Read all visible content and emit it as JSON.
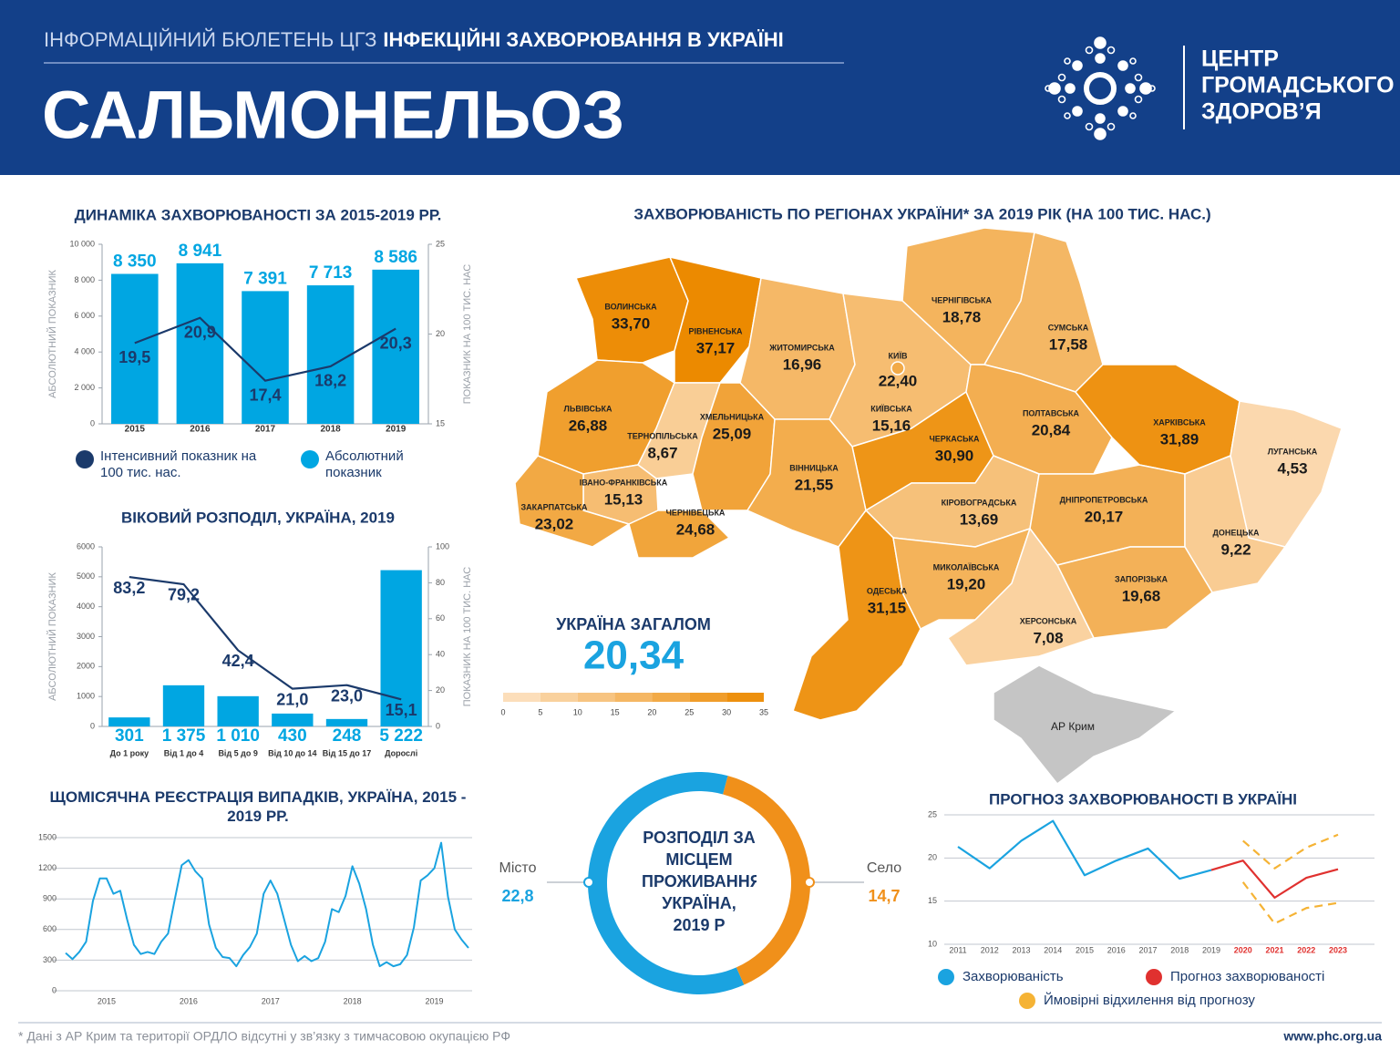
{
  "header": {
    "series_label": "ІНФОРМАЦІЙНИЙ БЮЛЕТЕНЬ ЦГЗ",
    "series_title": "ІНФЕКЦІЙНІ ЗАХВОРЮВАННЯ В УКРАЇНІ",
    "title": "САЛЬМОНЕЛЬОЗ",
    "org": [
      "ЦЕНТР",
      "ГРОМАДСЬКОГО",
      "ЗДОРОВ’Я"
    ]
  },
  "chart_data": [
    {
      "type": "bar-line",
      "title": "ДИНАМІКА ЗАХВОРЮВАНОСТІ ЗА 2015-2019 РР.",
      "categories": [
        "2015",
        "2016",
        "2017",
        "2018",
        "2019"
      ],
      "series": [
        {
          "name": "Інтенсивний показник на 100 тис. нас.",
          "color": "#1b3a6b",
          "axis": "y2",
          "values": [
            19.5,
            20.9,
            17.4,
            18.2,
            20.3
          ],
          "value_labels": [
            "19,5",
            "20,9",
            "17,4",
            "18,2",
            "20,3"
          ]
        },
        {
          "name": "Абсолютний показник",
          "color": "#00a6e2",
          "values": [
            8350,
            8941,
            7391,
            7713,
            8586
          ],
          "value_labels": [
            "8 350",
            "8 941",
            "7 391",
            "7 713",
            "8 586"
          ]
        }
      ],
      "ylabel": "АБСОЛЮТНИЙ ПОКАЗНИК",
      "y2label": "ПОКАЗНИК НА 100 ТИС. НАС",
      "ylim": [
        0,
        10000
      ],
      "yticks": [
        0,
        {
          "value": 2000,
          "label": "2 000"
        },
        {
          "value": 4000,
          "label": "4 000"
        },
        {
          "value": 6000,
          "label": "6 000"
        },
        {
          "value": 8000,
          "label": "8 000"
        },
        {
          "value": 10000,
          "label": "10 000"
        }
      ],
      "y2lim": [
        15,
        25
      ],
      "y2ticks": [
        15,
        20,
        25
      ],
      "legend": true
    },
    {
      "type": "bar-line",
      "title": "ВІКОВИЙ РОЗПОДІЛ, УКРАЇНА, 2019",
      "categories": [
        "До 1 року",
        "Від 1 до 4",
        "Від 5 до 9",
        "Від 10 до 14",
        "Від 15 до 17",
        "Дорослі"
      ],
      "series": [
        {
          "color": "#1b3a6b",
          "axis": "y2",
          "values": [
            83.2,
            79.2,
            42.4,
            21.0,
            23.0,
            15.1
          ],
          "value_labels": [
            "83,2",
            "79,2",
            "42,4",
            "21,0",
            "23,0",
            "15,1"
          ]
        },
        {
          "color": "#00a6e2",
          "values": [
            301,
            1375,
            1010,
            430,
            248,
            5222
          ],
          "value_labels": [
            "301",
            "1 375",
            "1 010",
            "430",
            "248",
            "5 222"
          ]
        }
      ],
      "ylabel": "АБСОЛЮТНИЙ ПОКАЗНИК",
      "y2label": "ПОКАЗНИК НА 100 ТИС. НАС",
      "ylim": [
        0,
        6000
      ],
      "yticks": [
        0,
        1000,
        2000,
        3000,
        4000,
        5000,
        6000
      ],
      "y2lim": [
        0,
        100
      ],
      "y2ticks": [
        0,
        20,
        40,
        60,
        80,
        100
      ]
    },
    {
      "type": "line",
      "title": "ЩОМІСЯЧНА РЕЄСТРАЦІЯ ВИПАДКІВ, УКРАЇНА, 2015 - 2019 РР.",
      "categories": [
        null,
        null,
        null,
        null,
        null,
        null,
        "2015",
        null,
        null,
        null,
        null,
        null,
        null,
        null,
        null,
        null,
        null,
        null,
        "2016",
        null,
        null,
        null,
        null,
        null,
        null,
        null,
        null,
        null,
        null,
        null,
        "2017",
        null,
        null,
        null,
        null,
        null,
        null,
        null,
        null,
        null,
        null,
        null,
        "2018",
        null,
        null,
        null,
        null,
        null,
        null,
        null,
        null,
        null,
        null,
        null,
        "2019",
        null,
        null,
        null,
        null,
        null
      ],
      "values": [
        370,
        310,
        380,
        480,
        880,
        1100,
        1100,
        950,
        980,
        700,
        450,
        360,
        380,
        360,
        480,
        560,
        900,
        1230,
        1280,
        1170,
        1100,
        650,
        420,
        330,
        320,
        240,
        350,
        430,
        560,
        950,
        1080,
        950,
        700,
        450,
        290,
        340,
        290,
        320,
        480,
        800,
        770,
        930,
        1220,
        1050,
        800,
        450,
        240,
        280,
        240,
        260,
        350,
        620,
        1080,
        1130,
        1200,
        1450,
        920,
        600,
        500,
        420
      ],
      "color": "#1aa3e0",
      "ylim": [
        0,
        1500
      ],
      "yticks": [
        0,
        300,
        600,
        900,
        1200,
        1500
      ],
      "grid": true
    },
    {
      "type": "donut",
      "title": "РОЗПОДІЛ ЗА МІСЦЕМ ПРОЖИВАННЯ, УКРАЇНА, 2019 Р",
      "categories": [
        "Місто",
        "Село"
      ],
      "values": [
        22.8,
        14.7
      ],
      "value_labels": [
        "22,8",
        "14,7"
      ],
      "colors": [
        "#1aa3e0",
        "#f0901a"
      ]
    },
    {
      "type": "line",
      "title": "ПРОГНОЗ ЗАХВОРЮВАНОСТІ В УКРАЇНІ",
      "categories": [
        "2011",
        "2012",
        "2013",
        "2014",
        "2015",
        "2016",
        "2017",
        "2018",
        "2019",
        "2020",
        "2021",
        "2022",
        "2023"
      ],
      "series": [
        {
          "name": "Захворюваність",
          "color": "#1aa3e0",
          "values": [
            21.3,
            18.8,
            22.0,
            24.3,
            18.0,
            19.7,
            21.1,
            17.6,
            18.6,
            null,
            null,
            null,
            null
          ]
        },
        {
          "name": "Прогноз захворюваності",
          "color": "#e0312f",
          "values": [
            null,
            null,
            null,
            null,
            null,
            null,
            null,
            null,
            18.6,
            19.7,
            15.4,
            17.7,
            18.7
          ]
        },
        {
          "name": "Ймовірні відхилення від прогнозу",
          "color": "#f5b335",
          "dashed": true,
          "values": [
            null,
            null,
            null,
            null,
            null,
            null,
            null,
            null,
            null,
            22.0,
            18.8,
            21.2,
            22.7
          ],
          "values_low": [
            null,
            null,
            null,
            null,
            null,
            null,
            null,
            null,
            null,
            17.2,
            12.4,
            14.2,
            14.8
          ]
        }
      ],
      "ylim": [
        10,
        25
      ],
      "yticks": [
        10,
        15,
        20,
        25
      ],
      "grid": true,
      "legend": true
    },
    {
      "type": "map",
      "title": "ЗАХВОРЮВАНІСТЬ ПО РЕГІОНАХ УКРАЇНИ* ЗА 2019 РІК (НА 100 ТИС. НАС.)",
      "regions": [
        {
          "name": "ВОЛИНСЬКА",
          "value": 33.7,
          "value_label": "33,70"
        },
        {
          "name": "РІВНЕНСЬКА",
          "value": 37.17,
          "value_label": "37,17"
        },
        {
          "name": "ЖИТОМИРСЬКА",
          "value": 16.96,
          "value_label": "16,96"
        },
        {
          "name": "ЧЕРНІГІВСЬКА",
          "value": 18.78,
          "value_label": "18,78"
        },
        {
          "name": "СУМСЬКА",
          "value": 17.58,
          "value_label": "17,58"
        },
        {
          "name": "ЛЬВІВСЬКА",
          "value": 26.88,
          "value_label": "26,88"
        },
        {
          "name": "ТЕРНОПІЛЬСЬКА",
          "value": 8.67,
          "value_label": "8,67"
        },
        {
          "name": "ХМЕЛЬНИЦЬКА",
          "value": 25.09,
          "value_label": "25,09"
        },
        {
          "name": "КИЇВСЬКА",
          "value": 15.16,
          "value_label": "15,16"
        },
        {
          "name": "ЧЕРКАСЬКА",
          "value": 30.9,
          "value_label": "30,90"
        },
        {
          "name": "ПОЛТАВСЬКА",
          "value": 20.84,
          "value_label": "20,84"
        },
        {
          "name": "ХАРКІВСЬКА",
          "value": 31.89,
          "value_label": "31,89"
        },
        {
          "name": "ЛУГАНСЬКА",
          "value": 4.53,
          "value_label": "4,53"
        },
        {
          "name": "ІВАНО-ФРАНКІВСЬКА",
          "value": 15.13,
          "value_label": "15,13"
        },
        {
          "name": "ЗАКАРПАТСЬКА",
          "value": 23.02,
          "value_label": "23,02"
        },
        {
          "name": "ЧЕРНІВЕЦЬКА",
          "value": 24.68,
          "value_label": "24,68"
        },
        {
          "name": "ВІННИЦЬКА",
          "value": 21.55,
          "value_label": "21,55"
        },
        {
          "name": "КІРОВОГРАДСЬКА",
          "value": 13.69,
          "value_label": "13,69"
        },
        {
          "name": "ДНІПРОПЕТРОВСЬКА",
          "value": 20.17,
          "value_label": "20,17"
        },
        {
          "name": "ДОНЕЦЬКА",
          "value": 9.22,
          "value_label": "9,22"
        },
        {
          "name": "ОДЕСЬКА",
          "value": 31.15,
          "value_label": "31,15"
        },
        {
          "name": "МИКОЛАЇВСЬКА",
          "value": 19.2,
          "value_label": "19,20"
        },
        {
          "name": "ЗАПОРІЗЬКА",
          "value": 19.68,
          "value_label": "19,68"
        },
        {
          "name": "ХЕРСОНСЬКА",
          "value": 7.08,
          "value_label": "7,08"
        }
      ],
      "city": {
        "name": "КИЇВ",
        "value": 22.4,
        "value_label": "22,40"
      },
      "no_data_region": "АР Крим",
      "total_label": "УКРАЇНА ЗАГАЛОМ",
      "total": 20.34,
      "total_value_label": "20,34",
      "color_scale": {
        "lim": [
          0,
          35
        ],
        "ticks": [
          0,
          5,
          10,
          15,
          20,
          25,
          30,
          35
        ],
        "colors": [
          "#fde4c8",
          "#ec8a00"
        ]
      }
    }
  ],
  "footer": {
    "note": "* Дані з АР Крим та території ОРДЛО відсутні у зв’язку з тимчасовою окупацією РФ",
    "url": "www.phc.org.ua"
  }
}
